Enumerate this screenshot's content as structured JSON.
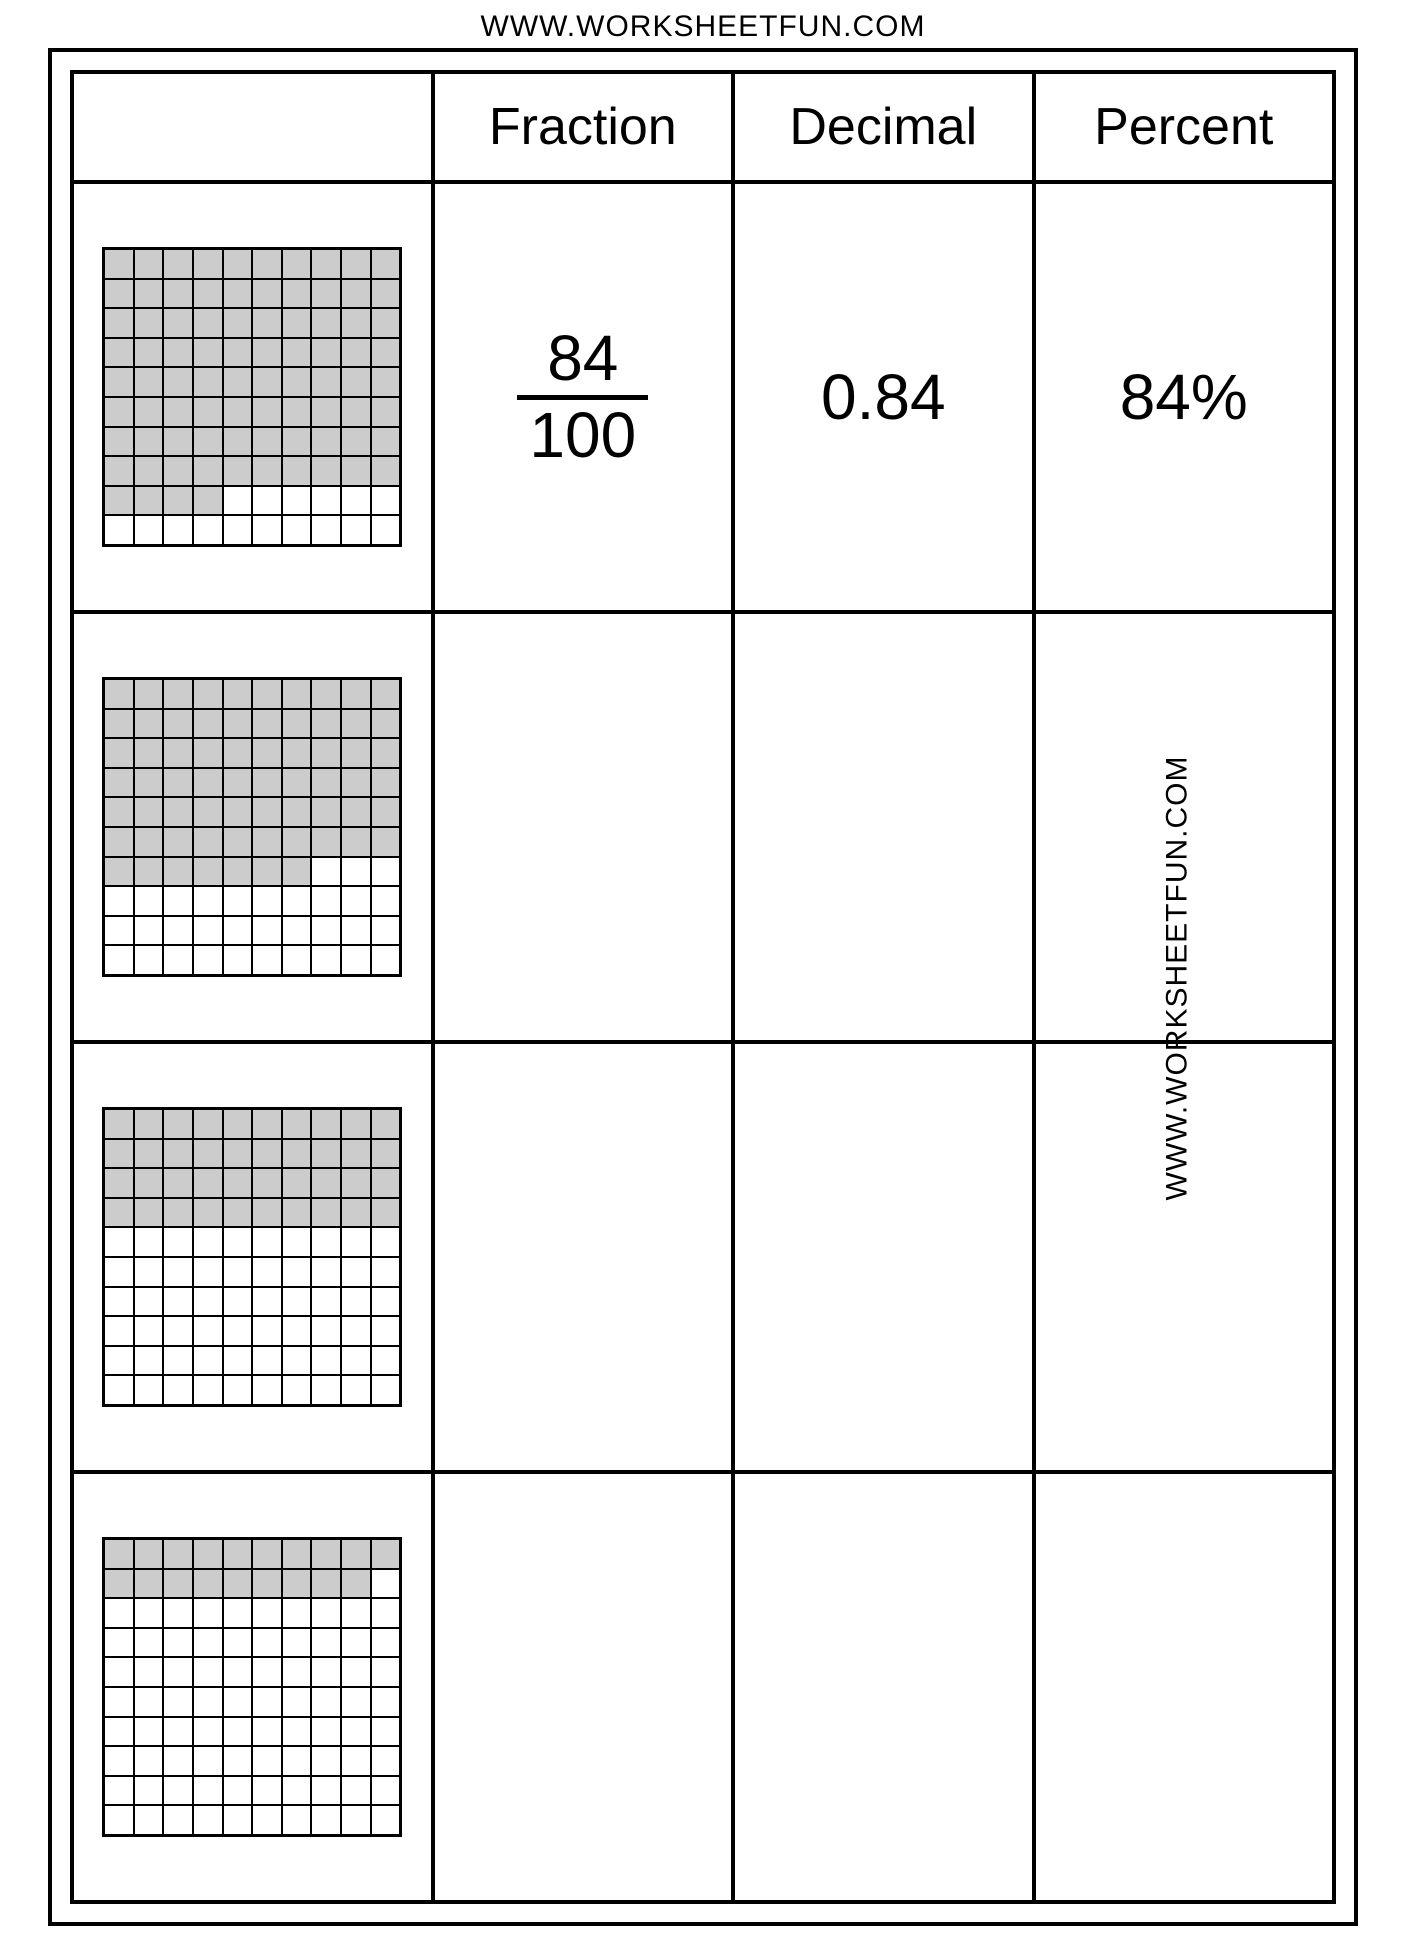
{
  "branding": {
    "url_top": "WWW.WORKSHEETFUN.COM",
    "url_side": "WWW.WORKSHEETFUN.COM"
  },
  "headers": {
    "grid": "",
    "fraction": "Fraction",
    "decimal": "Decimal",
    "percent": "Percent"
  },
  "grid_style": {
    "rows": 10,
    "cols": 10,
    "shaded_color": "#cccccc",
    "unshaded_color": "#ffffff",
    "line_color": "#000000"
  },
  "rows": [
    {
      "shaded_count": 84,
      "fraction_numerator": "84",
      "fraction_denominator": "100",
      "decimal": "0.84",
      "percent": "84%"
    },
    {
      "shaded_count": 67,
      "fraction_numerator": "",
      "fraction_denominator": "",
      "decimal": "",
      "percent": ""
    },
    {
      "shaded_count": 40,
      "fraction_numerator": "",
      "fraction_denominator": "",
      "decimal": "",
      "percent": ""
    },
    {
      "shaded_count": 19,
      "fraction_numerator": "",
      "fraction_denominator": "",
      "decimal": "",
      "percent": ""
    }
  ]
}
